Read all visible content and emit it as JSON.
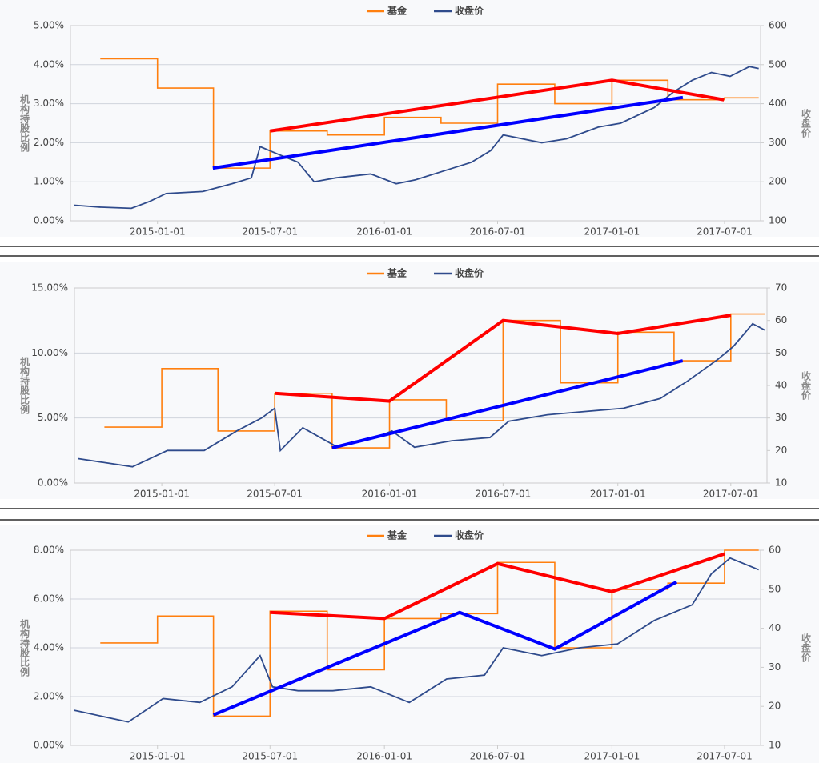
{
  "chart_data": [
    {
      "type": "line",
      "legend": "top",
      "grid": true,
      "ylabel": "机构持股比例",
      "y2label": "收盘价",
      "xlim": [
        "2014-08-14",
        "2017-08-28"
      ],
      "xticks": [
        "2015-01-01",
        "2015-07-01",
        "2016-01-01",
        "2016-07-01",
        "2017-01-01",
        "2017-07-01"
      ],
      "ylim": [
        0,
        5
      ],
      "yticks": [
        {
          "value": 0,
          "label": "0.00%"
        },
        {
          "value": 1,
          "label": "1.00%"
        },
        {
          "value": 2,
          "label": "2.00%"
        },
        {
          "value": 3,
          "label": "3.00%"
        },
        {
          "value": 4,
          "label": "4.00%"
        },
        {
          "value": 5,
          "label": "5.00%"
        }
      ],
      "y2lim": [
        100,
        600
      ],
      "y2ticks": [
        100,
        200,
        300,
        400,
        500,
        600
      ],
      "series": [
        {
          "name": "基金",
          "color": "#ff7f0e",
          "step": true,
          "x": [
            "2014-10-01",
            "2015-01-01",
            "2015-04-01",
            "2015-07-01",
            "2015-10-01",
            "2016-01-01",
            "2016-04-01",
            "2016-07-01",
            "2016-10-01",
            "2017-01-01",
            "2017-04-01",
            "2017-07-01",
            "2017-08-25"
          ],
          "values": [
            4.15,
            3.4,
            1.35,
            2.3,
            2.2,
            2.65,
            2.5,
            3.5,
            3.0,
            3.6,
            3.1,
            3.15,
            3.15
          ]
        },
        {
          "name": "收盘价",
          "color": "#2f4b8c",
          "axis": "y2",
          "x": [
            "2014-08-20",
            "2014-10-01",
            "2014-11-20",
            "2014-12-20",
            "2015-01-15",
            "2015-03-15",
            "2015-05-01",
            "2015-06-01",
            "2015-06-15",
            "2015-07-15",
            "2015-08-15",
            "2015-09-10",
            "2015-10-15",
            "2015-12-10",
            "2016-01-20",
            "2016-02-20",
            "2016-04-10",
            "2016-05-20",
            "2016-06-20",
            "2016-07-10",
            "2016-09-10",
            "2016-10-20",
            "2016-12-10",
            "2017-01-15",
            "2017-03-10",
            "2017-04-10",
            "2017-05-10",
            "2017-06-10",
            "2017-07-10",
            "2017-08-10",
            "2017-08-25"
          ],
          "values": [
            140,
            135,
            132,
            150,
            170,
            175,
            195,
            210,
            290,
            270,
            250,
            200,
            210,
            220,
            195,
            205,
            230,
            250,
            280,
            320,
            300,
            310,
            340,
            350,
            390,
            430,
            460,
            480,
            470,
            495,
            490
          ]
        }
      ],
      "overlays": [
        {
          "color": "#ff0000",
          "x": [
            "2015-07-01",
            "2017-01-01",
            "2017-06-30"
          ],
          "values": [
            2.3,
            3.6,
            3.1
          ]
        },
        {
          "color": "#0000ff",
          "x": [
            "2015-03-31",
            "2017-04-25"
          ],
          "values": [
            1.35,
            3.16
          ]
        }
      ]
    },
    {
      "type": "line",
      "legend": "top",
      "grid": true,
      "ylabel": "机构持股比例",
      "y2label": "收盘价",
      "xlim": [
        "2014-08-14",
        "2017-08-28"
      ],
      "xticks": [
        "2015-01-01",
        "2015-07-01",
        "2016-01-01",
        "2016-07-01",
        "2017-01-01",
        "2017-07-01"
      ],
      "ylim": [
        0,
        15
      ],
      "yticks": [
        {
          "value": 0,
          "label": "0.00%"
        },
        {
          "value": 5,
          "label": "5.00%"
        },
        {
          "value": 10,
          "label": "10.00%"
        },
        {
          "value": 15,
          "label": "15.00%"
        }
      ],
      "y2lim": [
        10,
        70
      ],
      "y2ticks": [
        10,
        20,
        30,
        40,
        50,
        60,
        70
      ],
      "series": [
        {
          "name": "基金",
          "color": "#ff7f0e",
          "step": true,
          "x": [
            "2014-10-01",
            "2015-01-01",
            "2015-04-01",
            "2015-07-01",
            "2015-10-01",
            "2016-01-01",
            "2016-04-01",
            "2016-07-01",
            "2016-10-01",
            "2017-01-01",
            "2017-04-01",
            "2017-07-01",
            "2017-08-25"
          ],
          "values": [
            4.3,
            8.8,
            4.0,
            6.9,
            2.7,
            6.4,
            4.8,
            12.5,
            7.7,
            11.6,
            9.4,
            13.0,
            13.0
          ]
        },
        {
          "name": "收盘价",
          "color": "#2f4b8c",
          "axis": "y2",
          "x": [
            "2014-08-20",
            "2014-11-15",
            "2015-01-10",
            "2015-03-10",
            "2015-05-01",
            "2015-06-10",
            "2015-07-01",
            "2015-07-10",
            "2015-08-15",
            "2015-10-10",
            "2015-12-10",
            "2016-01-05",
            "2016-02-10",
            "2016-04-10",
            "2016-06-10",
            "2016-07-10",
            "2016-09-10",
            "2016-11-10",
            "2017-01-10",
            "2017-03-10",
            "2017-04-20",
            "2017-06-10",
            "2017-07-05",
            "2017-08-05",
            "2017-08-25"
          ],
          "values": [
            17.5,
            15,
            20,
            20,
            26,
            30,
            33,
            20,
            27,
            21,
            24,
            26,
            21,
            23,
            24,
            29,
            31,
            32,
            33,
            36,
            41,
            48,
            52,
            59,
            57
          ]
        }
      ],
      "overlays": [
        {
          "color": "#ff0000",
          "x": [
            "2015-07-01",
            "2016-01-01",
            "2016-07-01",
            "2017-01-01",
            "2017-07-01"
          ],
          "values": [
            6.9,
            6.3,
            12.5,
            11.5,
            12.9
          ]
        },
        {
          "color": "#0000ff",
          "x": [
            "2015-10-01",
            "2017-04-15"
          ],
          "values": [
            2.7,
            9.4
          ]
        }
      ]
    },
    {
      "type": "line",
      "legend": "top",
      "grid": true,
      "ylabel": "机构持股比例",
      "y2label": "收盘价",
      "xlim": [
        "2014-08-14",
        "2017-08-28"
      ],
      "xticks": [
        "2015-01-01",
        "2015-07-01",
        "2016-01-01",
        "2016-07-01",
        "2017-01-01",
        "2017-07-01"
      ],
      "ylim": [
        0,
        8
      ],
      "yticks": [
        {
          "value": 0,
          "label": "0.00%"
        },
        {
          "value": 2,
          "label": "2.00%"
        },
        {
          "value": 4,
          "label": "4.00%"
        },
        {
          "value": 6,
          "label": "6.00%"
        },
        {
          "value": 8,
          "label": "8.00%"
        }
      ],
      "y2lim": [
        10,
        60
      ],
      "y2ticks": [
        10,
        20,
        30,
        40,
        50,
        60
      ],
      "series": [
        {
          "name": "基金",
          "color": "#ff7f0e",
          "step": true,
          "x": [
            "2014-10-01",
            "2015-01-01",
            "2015-04-01",
            "2015-07-01",
            "2015-10-01",
            "2016-01-01",
            "2016-04-01",
            "2016-07-01",
            "2016-10-01",
            "2017-01-01",
            "2017-04-01",
            "2017-07-01",
            "2017-08-25"
          ],
          "values": [
            4.2,
            5.3,
            1.2,
            5.5,
            3.1,
            5.2,
            5.4,
            7.5,
            4.0,
            6.4,
            6.65,
            8.0,
            8.0
          ]
        },
        {
          "name": "收盘价",
          "color": "#2f4b8c",
          "axis": "y2",
          "x": [
            "2014-08-20",
            "2014-11-15",
            "2015-01-10",
            "2015-03-10",
            "2015-05-01",
            "2015-06-15",
            "2015-07-05",
            "2015-08-15",
            "2015-10-10",
            "2015-12-10",
            "2016-02-10",
            "2016-04-10",
            "2016-06-10",
            "2016-07-10",
            "2016-09-10",
            "2016-11-10",
            "2017-01-10",
            "2017-03-10",
            "2017-05-10",
            "2017-06-10",
            "2017-07-10",
            "2017-08-25"
          ],
          "values": [
            19,
            16,
            22,
            21,
            25,
            33,
            25,
            24,
            24,
            25,
            21,
            27,
            28,
            35,
            33,
            35,
            36,
            42,
            46,
            54,
            58,
            55
          ]
        }
      ],
      "overlays": [
        {
          "color": "#ff0000",
          "x": [
            "2015-07-01",
            "2016-01-01",
            "2016-07-01",
            "2017-01-01",
            "2017-07-01"
          ],
          "values": [
            5.45,
            5.2,
            7.45,
            6.3,
            7.85
          ]
        },
        {
          "color": "#0000ff",
          "x": [
            "2015-04-01",
            "2016-05-01",
            "2016-10-01",
            "2017-04-15"
          ],
          "values": [
            1.25,
            5.45,
            3.95,
            6.7
          ]
        }
      ]
    }
  ]
}
